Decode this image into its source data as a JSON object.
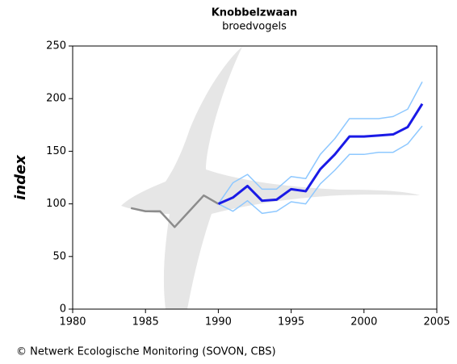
{
  "chart_data": {
    "type": "line",
    "title": "Knobbelzwaan",
    "subtitle": "broedvogels",
    "y_label": "index",
    "source": "© Netwerk Ecologische Monitoring (SOVON, CBS)",
    "x": [
      1984,
      1985,
      1986,
      1987,
      1988,
      1989,
      1990,
      1991,
      1992,
      1993,
      1994,
      1995,
      1996,
      1997,
      1998,
      1999,
      2000,
      2001,
      2002,
      2003,
      2004
    ],
    "series": [
      {
        "color": "#8c8c8c",
        "width": 2.5,
        "values": [
          96,
          93,
          93,
          78,
          93,
          108,
          100,
          null,
          null,
          null,
          null,
          null,
          null,
          null,
          null,
          null,
          null,
          null,
          null,
          null,
          null
        ]
      },
      {
        "color": "#8ec8ff",
        "width": 1.5,
        "values": [
          null,
          null,
          null,
          null,
          null,
          null,
          100,
          120,
          128,
          114,
          114,
          126,
          124,
          147,
          162,
          181,
          181,
          181,
          183,
          190,
          216
        ]
      },
      {
        "color": "#8ec8ff",
        "width": 1.5,
        "values": [
          null,
          null,
          null,
          null,
          null,
          null,
          100,
          93,
          103,
          91,
          93,
          102,
          100,
          119,
          132,
          147,
          147,
          149,
          149,
          157,
          174
        ]
      },
      {
        "color": "#1a1ae6",
        "width": 3,
        "values": [
          null,
          null,
          null,
          null,
          null,
          null,
          100,
          106,
          117,
          103,
          104,
          114,
          112,
          133,
          147,
          164,
          164,
          165,
          166,
          173,
          195
        ]
      }
    ],
    "xlim": [
      1980,
      2005
    ],
    "xticks": [
      1980,
      1985,
      1990,
      1995,
      2000,
      2005
    ],
    "ylim": [
      0,
      250
    ],
    "yticks": [
      0,
      50,
      100,
      150,
      200,
      250
    ]
  }
}
